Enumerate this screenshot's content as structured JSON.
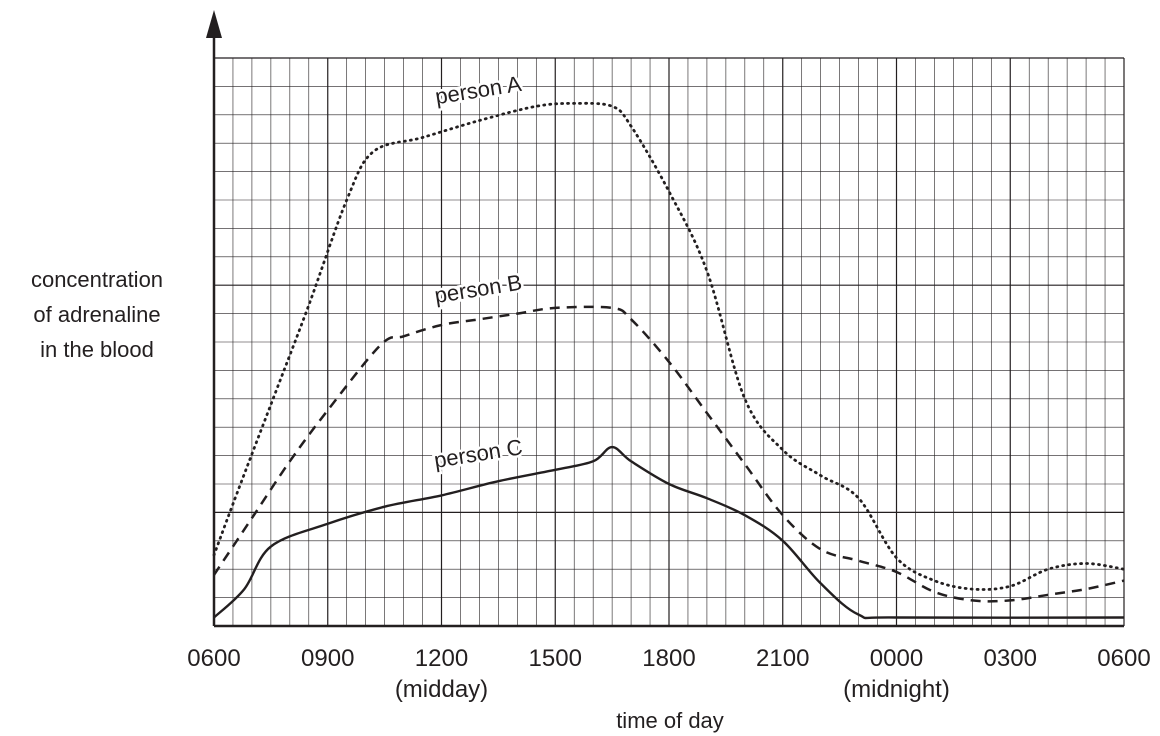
{
  "chart_data": {
    "type": "line",
    "title": "",
    "xlabel": "time of day",
    "ylabel": [
      "concentration",
      "of adrenaline",
      "in the blood"
    ],
    "x_ticks": [
      "0600",
      "0900",
      "1200",
      "1500",
      "1800",
      "2100",
      "0000",
      "0300",
      "0600"
    ],
    "x_tick_notes": [
      {
        "tick": "1200",
        "text": "(midday)"
      },
      {
        "tick": "0000",
        "text": "(midnight)"
      }
    ],
    "x_unit": "hours after 0600",
    "xlim": [
      0,
      24
    ],
    "ylim": [
      0,
      20
    ],
    "y_ticks_shown": false,
    "grid": true,
    "series": [
      {
        "name": "person A",
        "style": "dotted",
        "points": [
          [
            0,
            2.5
          ],
          [
            0.5,
            4.3
          ],
          [
            1.5,
            7.8
          ],
          [
            2.5,
            11.3
          ],
          [
            3.5,
            15.0
          ],
          [
            4.2,
            16.7
          ],
          [
            5.5,
            17.2
          ],
          [
            7,
            17.8
          ],
          [
            8.5,
            18.3
          ],
          [
            9.5,
            18.4
          ],
          [
            10.5,
            18.3
          ],
          [
            11,
            17.6
          ],
          [
            12,
            15.3
          ],
          [
            13,
            12.5
          ],
          [
            14,
            8.0
          ],
          [
            15,
            6.2
          ],
          [
            16,
            5.3
          ],
          [
            17,
            4.5
          ],
          [
            18,
            2.4
          ],
          [
            19,
            1.6
          ],
          [
            20,
            1.3
          ],
          [
            21,
            1.4
          ],
          [
            22,
            2.0
          ],
          [
            23,
            2.2
          ],
          [
            24,
            2.0
          ]
        ]
      },
      {
        "name": "person B",
        "style": "dashed",
        "points": [
          [
            0,
            1.8
          ],
          [
            1,
            3.8
          ],
          [
            2,
            5.8
          ],
          [
            3,
            7.6
          ],
          [
            4.4,
            9.9
          ],
          [
            5,
            10.2
          ],
          [
            6,
            10.6
          ],
          [
            7,
            10.8
          ],
          [
            8,
            11.0
          ],
          [
            9,
            11.2
          ],
          [
            10.5,
            11.2
          ],
          [
            11,
            10.8
          ],
          [
            12,
            9.3
          ],
          [
            13,
            7.5
          ],
          [
            14,
            5.7
          ],
          [
            15,
            3.9
          ],
          [
            16,
            2.7
          ],
          [
            17,
            2.3
          ],
          [
            18,
            1.9
          ],
          [
            19,
            1.2
          ],
          [
            20,
            0.9
          ],
          [
            21,
            0.9
          ],
          [
            22,
            1.1
          ],
          [
            23,
            1.3
          ],
          [
            24,
            1.6
          ]
        ]
      },
      {
        "name": "person C",
        "style": "solid",
        "points": [
          [
            0,
            0.3
          ],
          [
            0.8,
            1.3
          ],
          [
            1.5,
            2.8
          ],
          [
            3,
            3.6
          ],
          [
            4.5,
            4.2
          ],
          [
            6,
            4.6
          ],
          [
            7.5,
            5.1
          ],
          [
            9,
            5.5
          ],
          [
            10,
            5.8
          ],
          [
            10.5,
            6.3
          ],
          [
            11,
            5.8
          ],
          [
            12,
            5.0
          ],
          [
            13,
            4.5
          ],
          [
            14,
            3.9
          ],
          [
            15,
            3.0
          ],
          [
            16,
            1.5
          ],
          [
            17,
            0.4
          ],
          [
            18,
            0.3
          ],
          [
            24,
            0.3
          ]
        ]
      }
    ],
    "series_label_anchors": [
      {
        "series": "person A",
        "x": 7,
        "y": 18.4
      },
      {
        "series": "person B",
        "x": 7,
        "y": 11.4
      },
      {
        "series": "person C",
        "x": 7,
        "y": 5.6
      }
    ]
  }
}
